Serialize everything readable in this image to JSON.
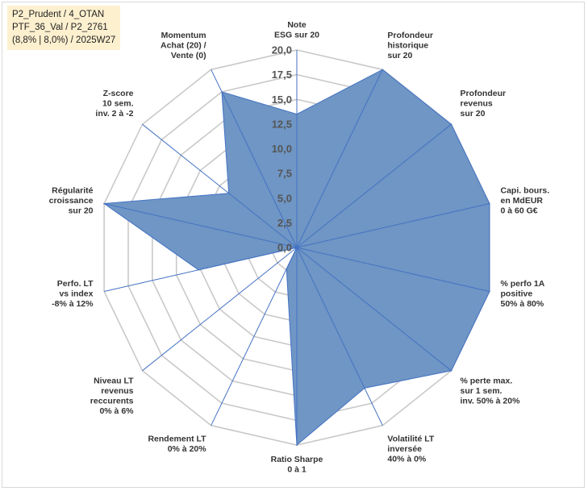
{
  "info_box": {
    "line1": "P2_Prudent / 4_OTAN",
    "line2": "PTF_36_Val / P2_2761",
    "line3": "(8,8% | 8,0%) / 2025W27"
  },
  "chart_data": {
    "type": "radar",
    "title": "",
    "rmin": 0,
    "rmax": 20,
    "tick_labels": [
      "0,0",
      "2,5",
      "5,0",
      "7,5",
      "10,0",
      "12,5",
      "15,0",
      "17,5",
      "20,0"
    ],
    "gridlines": true,
    "categories": [
      [
        "Note",
        "ESG sur 20"
      ],
      [
        "Profondeur",
        "historique",
        "sur 20"
      ],
      [
        "Profondeur",
        "revenus",
        "sur 20"
      ],
      [
        "Capi. bours.",
        "en MdEUR",
        "0 à 60 G€"
      ],
      [
        "% perfo 1A",
        "positive",
        "50% à 80%"
      ],
      [
        "% perte max.",
        "sur 1 sem.",
        "inv. 50% à 20%"
      ],
      [
        "Volatilité LT",
        "inversée",
        "40% à 0%"
      ],
      [
        "Ratio Sharpe",
        "0 à 1"
      ],
      [
        "Rendement LT",
        "0% à 20%"
      ],
      [
        "Niveau LT",
        "revenus",
        "reccurents",
        "0% à 6%"
      ],
      [
        "Perfo. LT",
        "vs index",
        "-8% à 12%"
      ],
      [
        "Régularité",
        "croissance",
        "sur 20"
      ],
      [
        "Z-score",
        "10 sem.",
        "inv. 2 à -2"
      ],
      [
        "Momentum",
        "Achat (20) /",
        "Vente (0)"
      ]
    ],
    "series": [
      {
        "values": [
          13.5,
          20,
          20,
          20,
          20,
          20,
          15.8,
          20,
          2.4,
          0,
          10.2,
          20,
          8.8,
          17.5
        ],
        "fill": "#6f96c4",
        "stroke": "#4472c4"
      }
    ]
  }
}
